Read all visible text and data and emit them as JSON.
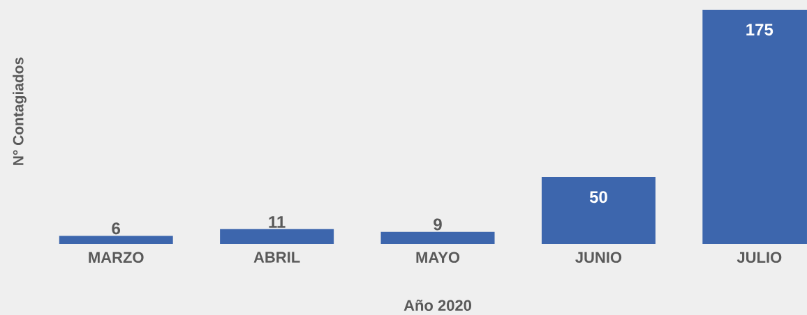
{
  "chart_data": {
    "type": "bar",
    "xlabel": "Año 2020",
    "ylabel": "N° Contagiados",
    "categories": [
      "MARZO",
      "ABRIL",
      "MAYO",
      "JUNIO",
      "JULIO"
    ],
    "values": [
      6,
      11,
      9,
      50,
      175
    ],
    "color": "#3d66ad",
    "data_labels": true
  }
}
